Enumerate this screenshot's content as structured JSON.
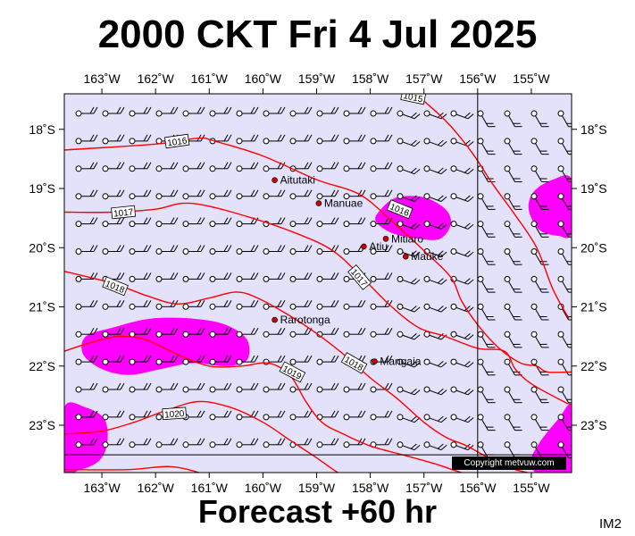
{
  "title": "2000 CKT Fri 4 Jul 2025",
  "footer": "Forecast +60 hr",
  "corner_label": "IM2",
  "copyright": "Copyright metvuw.com",
  "colors": {
    "background": "#e4e2fb",
    "isobar": "#ff0000",
    "rain": "#ff00ff",
    "wind": "#000000",
    "island": "#cc0000"
  },
  "map": {
    "lon_range": [
      -163.7,
      -154.25
    ],
    "lat_range": [
      -23.8,
      -17.4
    ],
    "longitude_ticks": [
      {
        "value": -163,
        "label": "163˚W"
      },
      {
        "value": -162,
        "label": "162˚W"
      },
      {
        "value": -161,
        "label": "161˚W"
      },
      {
        "value": -160,
        "label": "160˚W"
      },
      {
        "value": -159,
        "label": "159˚W"
      },
      {
        "value": -158,
        "label": "158˚W"
      },
      {
        "value": -157,
        "label": "157˚W"
      },
      {
        "value": -156,
        "label": "156˚W"
      },
      {
        "value": -155,
        "label": "155˚W"
      }
    ],
    "latitude_ticks": [
      {
        "value": -18,
        "label": "18˚S"
      },
      {
        "value": -19,
        "label": "19˚S"
      },
      {
        "value": -20,
        "label": "20˚S"
      },
      {
        "value": -21,
        "label": "21˚S"
      },
      {
        "value": -22,
        "label": "22˚S"
      },
      {
        "value": -23,
        "label": "23˚S"
      }
    ],
    "reference_meridian": -156,
    "reference_parallel": -23.5,
    "islands": [
      {
        "name": "Aitutaki",
        "lon": -159.78,
        "lat": -18.86
      },
      {
        "name": "Manuae",
        "lon": -158.96,
        "lat": -19.25
      },
      {
        "name": "Atiu",
        "lon": -158.12,
        "lat": -19.98
      },
      {
        "name": "Mitiaro",
        "lon": -157.71,
        "lat": -19.85
      },
      {
        "name": "Mauke",
        "lon": -157.34,
        "lat": -20.15
      },
      {
        "name": "Rarotonga",
        "lon": -159.78,
        "lat": -21.22
      },
      {
        "name": "Mangaia",
        "lon": -157.92,
        "lat": -21.92
      }
    ],
    "isobars": [
      {
        "label": "1015",
        "points": [
          [
            -157.6,
            -17.3
          ],
          [
            -157.2,
            -17.4
          ],
          [
            -156.9,
            -17.6
          ],
          [
            -156.5,
            -17.95
          ],
          [
            -156.1,
            -18.4
          ],
          [
            -155.7,
            -18.95
          ],
          [
            -155.3,
            -19.45
          ],
          [
            -154.9,
            -20.0
          ],
          [
            -154.6,
            -20.7
          ],
          [
            -154.3,
            -21.2
          ]
        ]
      },
      {
        "label": "1016",
        "points": [
          [
            -163.7,
            -18.35
          ],
          [
            -162.0,
            -18.25
          ],
          [
            -161.2,
            -18.15
          ],
          [
            -160.9,
            -18.2
          ],
          [
            -160.0,
            -18.45
          ],
          [
            -159.0,
            -18.85
          ],
          [
            -158.2,
            -19.1
          ],
          [
            -157.6,
            -19.55
          ],
          [
            -157.0,
            -20.05
          ],
          [
            -156.5,
            -20.5
          ],
          [
            -156.3,
            -20.9
          ],
          [
            -156.0,
            -21.3
          ],
          [
            -155.6,
            -21.7
          ],
          [
            -155.2,
            -21.95
          ],
          [
            -154.9,
            -22.0
          ],
          [
            -154.7,
            -22.1
          ],
          [
            -154.25,
            -22.1
          ]
        ]
      },
      {
        "label": "1017",
        "points": [
          [
            -163.7,
            -19.4
          ],
          [
            -162.8,
            -19.4
          ],
          [
            -162.0,
            -19.35
          ],
          [
            -161.5,
            -19.25
          ],
          [
            -161.0,
            -19.3
          ],
          [
            -160.2,
            -19.5
          ],
          [
            -159.4,
            -19.75
          ],
          [
            -158.7,
            -20.05
          ],
          [
            -158.1,
            -20.55
          ],
          [
            -157.6,
            -21.0
          ],
          [
            -157.1,
            -21.35
          ],
          [
            -156.6,
            -21.5
          ],
          [
            -156.0,
            -21.7
          ],
          [
            -155.5,
            -21.75
          ],
          [
            -155.3,
            -22.05
          ],
          [
            -155.0,
            -22.3
          ],
          [
            -154.4,
            -22.6
          ],
          [
            -154.25,
            -22.65
          ]
        ]
      },
      {
        "label": "1018",
        "points": [
          [
            -163.7,
            -20.4
          ],
          [
            -162.8,
            -20.6
          ],
          [
            -162.2,
            -20.8
          ],
          [
            -161.6,
            -20.95
          ],
          [
            -161.0,
            -20.85
          ],
          [
            -160.5,
            -20.75
          ],
          [
            -160.1,
            -20.85
          ],
          [
            -159.5,
            -21.15
          ],
          [
            -159.0,
            -21.45
          ],
          [
            -158.5,
            -21.8
          ],
          [
            -158.0,
            -22.2
          ],
          [
            -157.5,
            -22.55
          ],
          [
            -157.0,
            -22.95
          ],
          [
            -156.6,
            -23.2
          ],
          [
            -156.2,
            -23.35
          ],
          [
            -155.7,
            -23.6
          ],
          [
            -155.3,
            -23.75
          ],
          [
            -154.8,
            -23.85
          ]
        ]
      },
      {
        "label": "1019",
        "points": [
          [
            -163.7,
            -21.75
          ],
          [
            -163.2,
            -21.6
          ],
          [
            -162.7,
            -21.5
          ],
          [
            -162.2,
            -21.55
          ],
          [
            -161.6,
            -21.8
          ],
          [
            -161.0,
            -22.0
          ],
          [
            -160.4,
            -22.0
          ],
          [
            -159.9,
            -21.95
          ],
          [
            -159.5,
            -22.15
          ],
          [
            -159.2,
            -22.6
          ],
          [
            -158.9,
            -22.95
          ],
          [
            -158.5,
            -23.15
          ],
          [
            -158.0,
            -23.35
          ],
          [
            -157.4,
            -23.5
          ],
          [
            -156.8,
            -23.65
          ],
          [
            -156.3,
            -23.8
          ],
          [
            -155.8,
            -23.9
          ]
        ]
      },
      {
        "label": "1020",
        "points": [
          [
            -163.7,
            -23.15
          ],
          [
            -163.0,
            -23.1
          ],
          [
            -162.4,
            -22.95
          ],
          [
            -161.8,
            -22.75
          ],
          [
            -161.2,
            -22.6
          ],
          [
            -160.6,
            -22.7
          ],
          [
            -160.0,
            -22.95
          ],
          [
            -159.5,
            -23.25
          ],
          [
            -159.0,
            -23.55
          ],
          [
            -158.6,
            -23.8
          ],
          [
            -158.2,
            -23.95
          ]
        ]
      },
      {
        "label": "",
        "points": [
          [
            -163.7,
            -23.75
          ],
          [
            -162.5,
            -23.75
          ],
          [
            -161.7,
            -23.7
          ],
          [
            -161.0,
            -23.85
          ],
          [
            -160.4,
            -24.0
          ]
        ]
      }
    ],
    "isobar_labels": [
      {
        "text": "1015",
        "lon": -157.2,
        "lat": -17.45,
        "angle": 12
      },
      {
        "text": "1016",
        "lon": -161.6,
        "lat": -18.2,
        "angle": -8
      },
      {
        "text": "1016",
        "lon": -157.45,
        "lat": -19.35,
        "angle": 22
      },
      {
        "text": "1017",
        "lon": -162.6,
        "lat": -19.4,
        "angle": -6
      },
      {
        "text": "1017",
        "lon": -158.2,
        "lat": -20.5,
        "angle": 50
      },
      {
        "text": "1018",
        "lon": -162.75,
        "lat": -20.65,
        "angle": 22
      },
      {
        "text": "1018",
        "lon": -158.3,
        "lat": -21.95,
        "angle": 30
      },
      {
        "text": "1019",
        "lon": -159.45,
        "lat": -22.1,
        "angle": 28
      },
      {
        "text": "1020",
        "lon": -161.65,
        "lat": -22.8,
        "angle": -4
      }
    ],
    "rain_areas": [
      {
        "points": [
          [
            -163.3,
            -21.5
          ],
          [
            -162.8,
            -21.35
          ],
          [
            -162.1,
            -21.2
          ],
          [
            -161.3,
            -21.2
          ],
          [
            -160.7,
            -21.3
          ],
          [
            -160.3,
            -21.55
          ],
          [
            -160.3,
            -21.9
          ],
          [
            -160.7,
            -22.0
          ],
          [
            -161.3,
            -21.95
          ],
          [
            -161.9,
            -22.05
          ],
          [
            -162.5,
            -22.15
          ],
          [
            -163.0,
            -22.05
          ],
          [
            -163.35,
            -21.8
          ]
        ]
      },
      {
        "points": [
          [
            -163.7,
            -22.7
          ],
          [
            -163.3,
            -22.7
          ],
          [
            -162.95,
            -22.9
          ],
          [
            -162.9,
            -23.3
          ],
          [
            -163.05,
            -23.6
          ],
          [
            -163.4,
            -23.75
          ],
          [
            -163.7,
            -23.75
          ]
        ]
      },
      {
        "points": [
          [
            -157.8,
            -19.35
          ],
          [
            -157.5,
            -19.15
          ],
          [
            -157.0,
            -19.15
          ],
          [
            -156.6,
            -19.35
          ],
          [
            -156.5,
            -19.6
          ],
          [
            -156.7,
            -19.85
          ],
          [
            -157.1,
            -19.85
          ],
          [
            -157.6,
            -19.75
          ],
          [
            -157.9,
            -19.55
          ]
        ]
      },
      {
        "points": [
          [
            -154.25,
            -18.85
          ],
          [
            -154.6,
            -18.85
          ],
          [
            -154.95,
            -19.05
          ],
          [
            -155.05,
            -19.35
          ],
          [
            -154.85,
            -19.7
          ],
          [
            -154.5,
            -19.8
          ],
          [
            -154.25,
            -19.75
          ]
        ]
      },
      {
        "points": [
          [
            -154.25,
            -22.7
          ],
          [
            -154.5,
            -22.9
          ],
          [
            -154.85,
            -23.3
          ],
          [
            -155.0,
            -23.6
          ],
          [
            -154.85,
            -23.85
          ],
          [
            -154.25,
            -23.85
          ]
        ]
      }
    ]
  }
}
